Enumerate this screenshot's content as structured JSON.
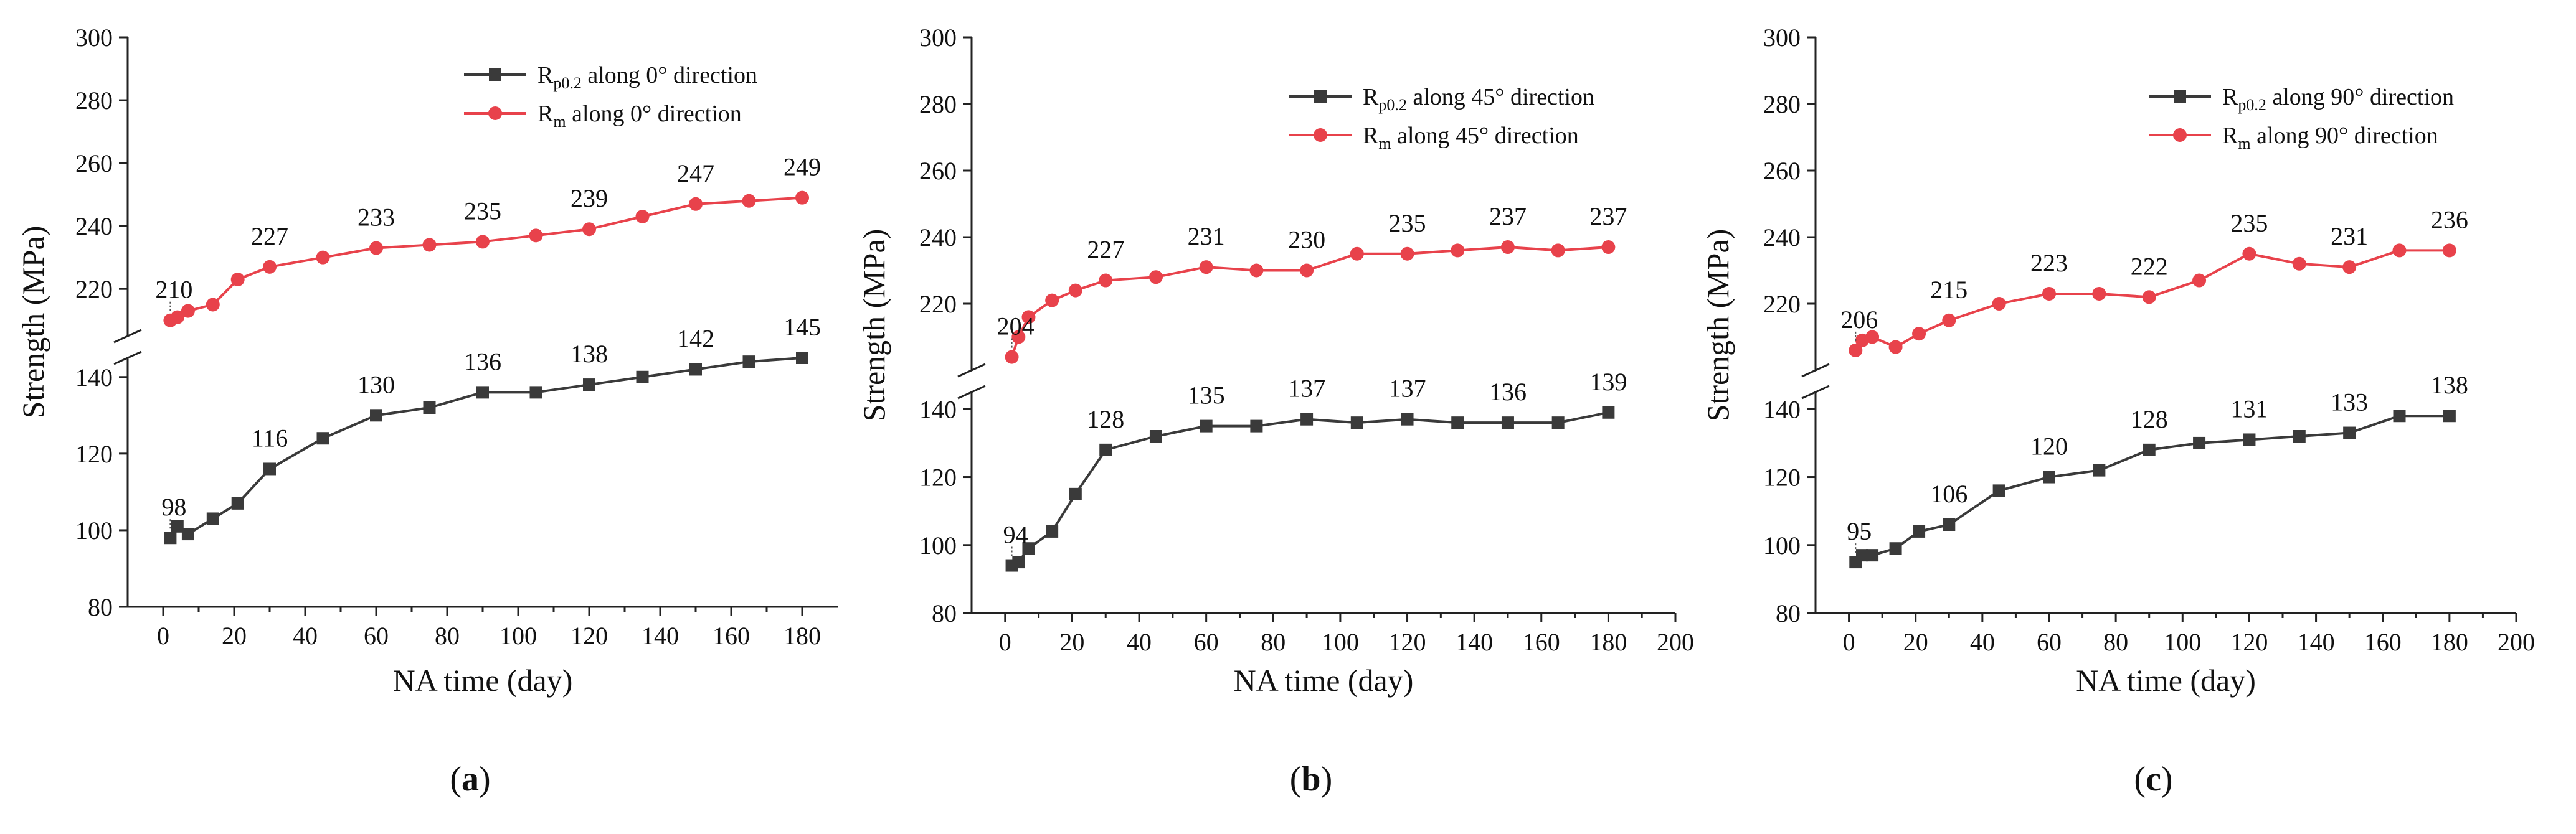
{
  "chart_data": [
    {
      "type": "line",
      "panel_label": "a",
      "xlabel": "NA time (day)",
      "ylabel": "Strength (MPa)",
      "xlim": [
        -10,
        190
      ],
      "xticks": [
        0,
        20,
        40,
        60,
        80,
        100,
        120,
        140,
        160,
        180
      ],
      "axis_break": true,
      "ylim_lower": [
        80,
        145
      ],
      "yticks_lower": [
        80,
        100,
        120,
        140
      ],
      "ylim_upper": [
        205,
        300
      ],
      "yticks_upper": [
        220,
        240,
        260,
        280,
        300
      ],
      "legend_position": "top-right",
      "series": [
        {
          "name": "Rp0.2 along 0° direction",
          "legend_main": "R",
          "legend_sub": "p0.2",
          "legend_rest": " along 0° direction",
          "color": "#3a3a3a",
          "marker": "square",
          "segment": "lower",
          "x": [
            2,
            4,
            7,
            14,
            21,
            30,
            45,
            60,
            75,
            90,
            105,
            120,
            135,
            150,
            165,
            180
          ],
          "values": [
            98,
            101,
            99,
            103,
            107,
            116,
            124,
            130,
            132,
            136,
            136,
            138,
            140,
            142,
            144,
            145
          ],
          "labels": [
            {
              "x": 2,
              "y": 98,
              "text": "98"
            },
            {
              "x": 30,
              "y": 116,
              "text": "116"
            },
            {
              "x": 60,
              "y": 130,
              "text": "130"
            },
            {
              "x": 90,
              "y": 136,
              "text": "136"
            },
            {
              "x": 120,
              "y": 138,
              "text": "138"
            },
            {
              "x": 150,
              "y": 142,
              "text": "142"
            },
            {
              "x": 180,
              "y": 145,
              "text": "145"
            }
          ]
        },
        {
          "name": "Rm along 0° direction",
          "legend_main": "R",
          "legend_sub": "m",
          "legend_rest": "    along 0° direction",
          "color": "#e8424b",
          "marker": "circle",
          "segment": "upper",
          "x": [
            2,
            4,
            7,
            14,
            21,
            30,
            45,
            60,
            75,
            90,
            105,
            120,
            135,
            150,
            165,
            180
          ],
          "values": [
            210,
            211,
            213,
            215,
            223,
            227,
            230,
            233,
            234,
            235,
            237,
            239,
            243,
            247,
            248,
            249
          ],
          "labels": [
            {
              "x": 2,
              "y": 210,
              "text": "210"
            },
            {
              "x": 30,
              "y": 227,
              "text": "227"
            },
            {
              "x": 60,
              "y": 233,
              "text": "233"
            },
            {
              "x": 90,
              "y": 235,
              "text": "235"
            },
            {
              "x": 120,
              "y": 239,
              "text": "239"
            },
            {
              "x": 150,
              "y": 247,
              "text": "247"
            },
            {
              "x": 180,
              "y": 249,
              "text": "249"
            }
          ]
        }
      ]
    },
    {
      "type": "line",
      "panel_label": "b",
      "xlabel": "NA time (day)",
      "ylabel": "Strength (MPa)",
      "xlim": [
        -10,
        200
      ],
      "xticks": [
        0,
        20,
        40,
        60,
        80,
        100,
        120,
        140,
        160,
        180,
        200
      ],
      "axis_break": true,
      "ylim_lower": [
        80,
        145
      ],
      "yticks_lower": [
        80,
        100,
        120,
        140
      ],
      "ylim_upper": [
        200,
        300
      ],
      "yticks_upper": [
        220,
        240,
        260,
        280,
        300
      ],
      "legend_position": "top-right",
      "series": [
        {
          "name": "Rp0.2 along 45° direction",
          "legend_main": "R",
          "legend_sub": "p0.2",
          "legend_rest": " along 45° direction",
          "color": "#3a3a3a",
          "marker": "square",
          "segment": "lower",
          "x": [
            2,
            4,
            7,
            14,
            21,
            30,
            45,
            60,
            75,
            90,
            105,
            120,
            135,
            150,
            165,
            180
          ],
          "values": [
            94,
            95,
            99,
            104,
            115,
            128,
            132,
            135,
            135,
            137,
            136,
            137,
            136,
            136,
            136,
            139
          ],
          "labels": [
            {
              "x": 2,
              "y": 94,
              "text": "94"
            },
            {
              "x": 30,
              "y": 128,
              "text": "128"
            },
            {
              "x": 60,
              "y": 135,
              "text": "135"
            },
            {
              "x": 90,
              "y": 137,
              "text": "137"
            },
            {
              "x": 120,
              "y": 137,
              "text": "137"
            },
            {
              "x": 150,
              "y": 136,
              "text": "136"
            },
            {
              "x": 180,
              "y": 139,
              "text": "139"
            }
          ]
        },
        {
          "name": "Rm along 45° direction",
          "legend_main": "R",
          "legend_sub": "m",
          "legend_rest": "    along 45° direction",
          "color": "#e8424b",
          "marker": "circle",
          "segment": "upper",
          "x": [
            2,
            4,
            7,
            14,
            21,
            30,
            45,
            60,
            75,
            90,
            105,
            120,
            135,
            150,
            165,
            180
          ],
          "values": [
            204,
            210,
            216,
            221,
            224,
            227,
            228,
            231,
            230,
            230,
            235,
            235,
            236,
            237,
            236,
            237
          ],
          "labels": [
            {
              "x": 2,
              "y": 204,
              "text": "204"
            },
            {
              "x": 30,
              "y": 227,
              "text": "227"
            },
            {
              "x": 60,
              "y": 231,
              "text": "231"
            },
            {
              "x": 90,
              "y": 230,
              "text": "230"
            },
            {
              "x": 120,
              "y": 235,
              "text": "235"
            },
            {
              "x": 150,
              "y": 237,
              "text": "237"
            },
            {
              "x": 180,
              "y": 237,
              "text": "237"
            }
          ]
        }
      ]
    },
    {
      "type": "line",
      "panel_label": "c",
      "xlabel": "NA time (day)",
      "ylabel": "Strength (MPa)",
      "xlim": [
        -10,
        200
      ],
      "xticks": [
        0,
        20,
        40,
        60,
        80,
        100,
        120,
        140,
        160,
        180,
        200
      ],
      "axis_break": true,
      "ylim_lower": [
        80,
        145
      ],
      "yticks_lower": [
        80,
        100,
        120,
        140
      ],
      "ylim_upper": [
        200,
        300
      ],
      "yticks_upper": [
        220,
        240,
        260,
        280,
        300
      ],
      "legend_position": "top-right",
      "series": [
        {
          "name": "Rp0.2 along 90° direction",
          "legend_main": "R",
          "legend_sub": "p0.2",
          "legend_rest": " along 90° direction",
          "color": "#3a3a3a",
          "marker": "square",
          "segment": "lower",
          "x": [
            2,
            4,
            7,
            14,
            21,
            30,
            45,
            60,
            75,
            90,
            105,
            120,
            135,
            150,
            165,
            180
          ],
          "values": [
            95,
            97,
            97,
            99,
            104,
            106,
            116,
            120,
            122,
            128,
            130,
            131,
            132,
            133,
            138,
            138
          ],
          "labels": [
            {
              "x": 2,
              "y": 95,
              "text": "95"
            },
            {
              "x": 30,
              "y": 106,
              "text": "106"
            },
            {
              "x": 60,
              "y": 120,
              "text": "120"
            },
            {
              "x": 90,
              "y": 128,
              "text": "128"
            },
            {
              "x": 120,
              "y": 131,
              "text": "131"
            },
            {
              "x": 150,
              "y": 133,
              "text": "133"
            },
            {
              "x": 180,
              "y": 138,
              "text": "138"
            }
          ]
        },
        {
          "name": "Rm along 90° direction",
          "legend_main": "R",
          "legend_sub": "m",
          "legend_rest": "    along 90° direction",
          "color": "#e8424b",
          "marker": "circle",
          "segment": "upper",
          "x": [
            2,
            4,
            7,
            14,
            21,
            30,
            45,
            60,
            75,
            90,
            105,
            120,
            135,
            150,
            165,
            180
          ],
          "values": [
            206,
            209,
            210,
            207,
            211,
            215,
            220,
            223,
            223,
            222,
            227,
            235,
            232,
            231,
            236,
            236
          ],
          "labels": [
            {
              "x": 2,
              "y": 206,
              "text": "206"
            },
            {
              "x": 30,
              "y": 215,
              "text": "215"
            },
            {
              "x": 60,
              "y": 223,
              "text": "223"
            },
            {
              "x": 90,
              "y": 222,
              "text": "222"
            },
            {
              "x": 120,
              "y": 235,
              "text": "235"
            },
            {
              "x": 150,
              "y": 231,
              "text": "231"
            },
            {
              "x": 180,
              "y": 236,
              "text": "236"
            }
          ]
        }
      ]
    }
  ]
}
